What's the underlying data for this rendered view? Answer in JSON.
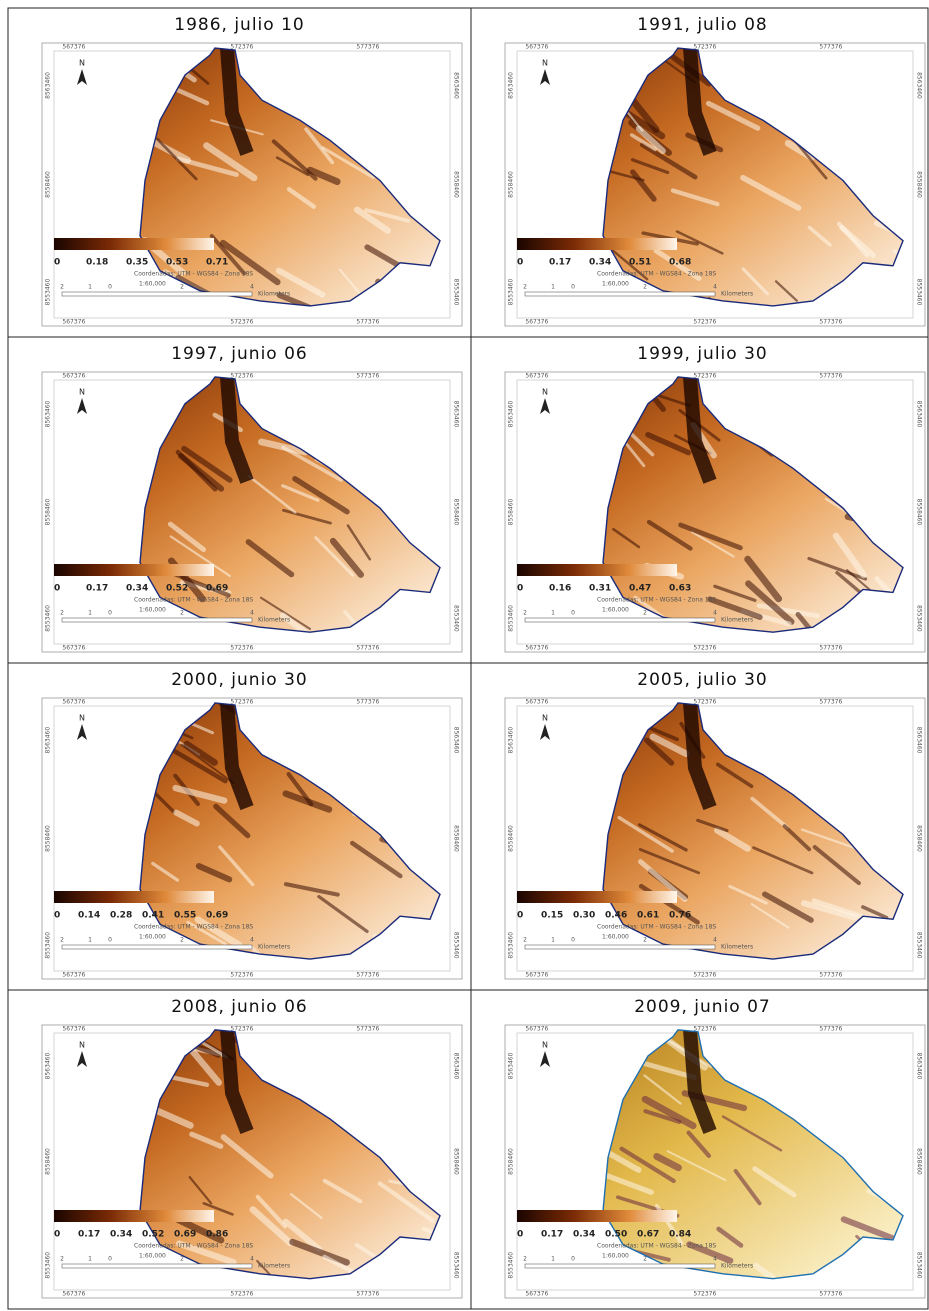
{
  "panels": [
    {
      "title": "1986, julio 10",
      "legend": [
        "0",
        "0.18",
        "0.35",
        "0.53",
        "0.71"
      ]
    },
    {
      "title": "1991, julio 08",
      "legend": [
        "0",
        "0.17",
        "0.34",
        "0.51",
        "0.68"
      ]
    },
    {
      "title": "1997, junio 06",
      "legend": [
        "0",
        "0.17",
        "0.34",
        "0.52",
        "0.69"
      ]
    },
    {
      "title": "1999, julio 30",
      "legend": [
        "0",
        "0.16",
        "0.31",
        "0.47",
        "0.63"
      ]
    },
    {
      "title": "2000, junio 30",
      "legend": [
        "0",
        "0.14",
        "0.28",
        "0.41",
        "0.55",
        "0.69"
      ]
    },
    {
      "title": "2005, julio 30",
      "legend": [
        "0",
        "0.15",
        "0.30",
        "0.46",
        "0.61",
        "0.76"
      ]
    },
    {
      "title": "2008, junio 06",
      "legend": [
        "0",
        "0.17",
        "0.34",
        "0.52",
        "0.69",
        "0.86"
      ]
    },
    {
      "title": "2009, junio 07",
      "legend": [
        "0",
        "0.17",
        "0.34",
        "0.50",
        "0.67",
        "0.84"
      ]
    }
  ],
  "map_frame": {
    "north": "N",
    "x_labels": [
      "567376",
      "572376",
      "577376"
    ],
    "y_labels": [
      "8563460",
      "8558460",
      "8553460"
    ],
    "note": "Coordenadas: UTM - WGS84 - Zona 18S",
    "scale": "1:60,000",
    "scale_ticks": [
      "2",
      "1",
      "0",
      "2",
      "4"
    ],
    "scale_unit": "Kilometers"
  }
}
